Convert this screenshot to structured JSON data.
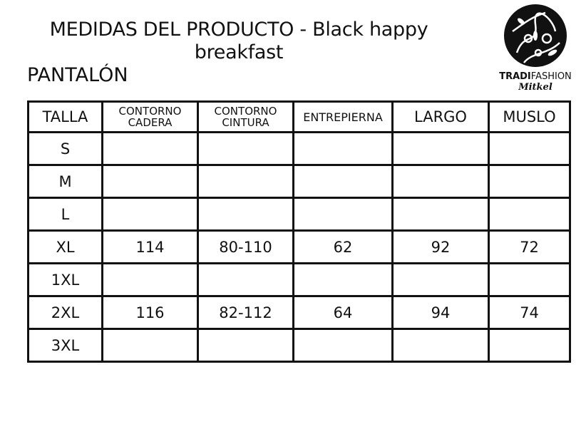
{
  "title": "MEDIDAS DEL PRODUCTO - Black happy breakfast",
  "subtitle": "PANTALÓN",
  "logo": {
    "brand_bold": "TRADI",
    "brand_rest": "FASHION",
    "script": "Mitkel"
  },
  "table": {
    "headers": [
      "TALLA",
      "CONTORNO CADERA",
      "CONTORNO CINTURA",
      "ENTREPIERNA",
      "LARGO",
      "MUSLO"
    ],
    "rows": [
      [
        "S",
        "",
        "",
        "",
        "",
        ""
      ],
      [
        "M",
        "",
        "",
        "",
        "",
        ""
      ],
      [
        "L",
        "",
        "",
        "",
        "",
        ""
      ],
      [
        "XL",
        "114",
        "80-110",
        "62",
        "92",
        "72"
      ],
      [
        "1XL",
        "",
        "",
        "",
        "",
        ""
      ],
      [
        "2XL",
        "116",
        "82-112",
        "64",
        "94",
        "74"
      ],
      [
        "3XL",
        "",
        "",
        "",
        "",
        ""
      ]
    ]
  }
}
